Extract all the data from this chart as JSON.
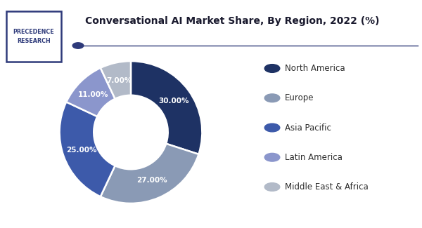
{
  "title": "Conversational AI Market Share, By Region, 2022 (%)",
  "labels": [
    "North America",
    "Europe",
    "Asia Pacific",
    "Latin America",
    "Middle East & Africa"
  ],
  "values": [
    30.0,
    27.0,
    25.0,
    11.0,
    7.0
  ],
  "colors": [
    "#1e3264",
    "#8a9ab5",
    "#3d5aaa",
    "#8b96cc",
    "#b2bac8"
  ],
  "pct_labels": [
    "30.00%",
    "27.00%",
    "25.00%",
    "11.00%",
    "7.00%"
  ],
  "pct_colors": [
    "white",
    "white",
    "white",
    "white",
    "white"
  ],
  "background_color": "#ffffff",
  "title_color": "#1a1a2e",
  "text_color": "#2d2d2d",
  "logo_border_color": "#2e3a7a",
  "logo_text": "PRECEDENCE\nRESEARCH",
  "separator_line_color": "#2e3a7a",
  "wedge_edge_color": "#ffffff"
}
